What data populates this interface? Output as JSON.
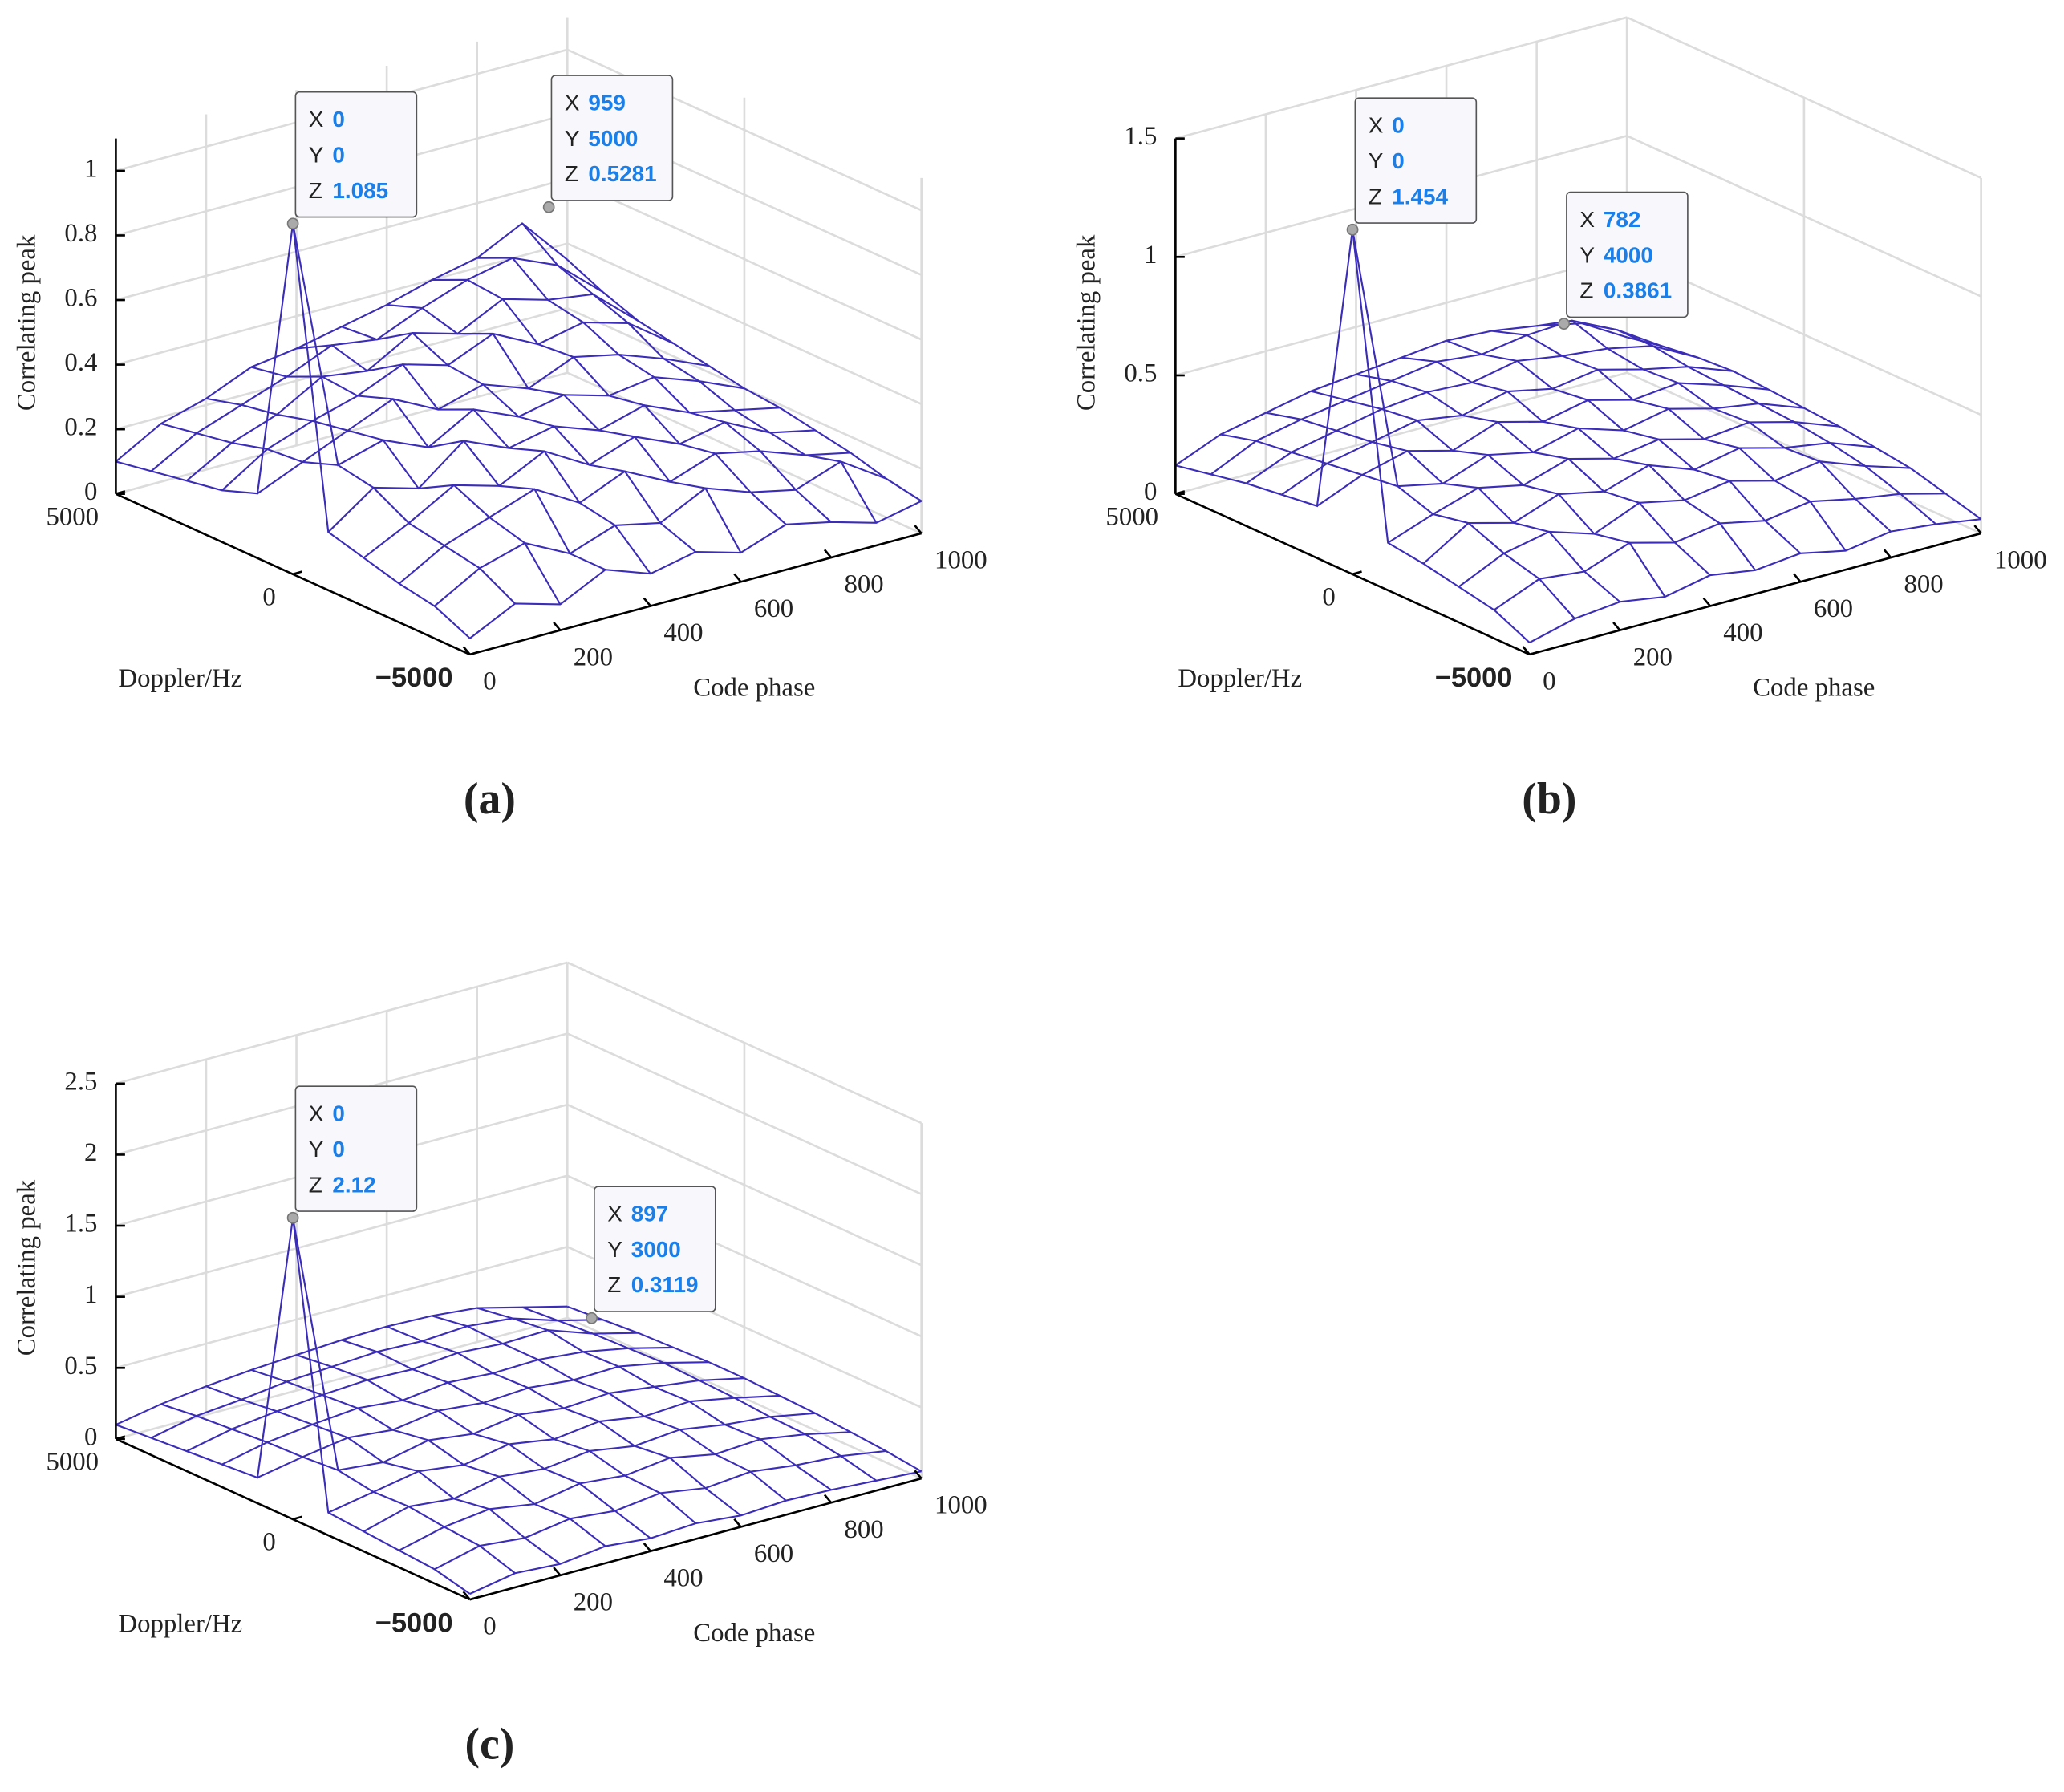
{
  "chart_data": [
    {
      "type": "mesh",
      "panel_label": "(a)",
      "xlabel": "Code phase",
      "ylabel": "Doppler/Hz",
      "zlabel": "Correlating peak",
      "color": "#3b2db8",
      "xlim": [
        0,
        1000
      ],
      "xticks": [
        0,
        200,
        400,
        600,
        800,
        1000
      ],
      "ylim": [
        -5000,
        5000
      ],
      "yticks": [
        {
          "value": -5000,
          "label": "−5000"
        },
        0,
        5000
      ],
      "zlim": [
        0,
        1.1
      ],
      "zticks": [
        0,
        0.2,
        0.4,
        0.6,
        0.8,
        1
      ],
      "grid": true,
      "x": [
        0,
        100,
        200,
        300,
        400,
        500,
        600,
        700,
        800,
        900,
        1000
      ],
      "y": [
        -5000,
        -4000,
        -3000,
        -2000,
        -1000,
        0,
        1000,
        2000,
        3000,
        4000,
        5000
      ],
      "z": [
        [
          0.05,
          0.12,
          0.08,
          0.15,
          0.1,
          0.13,
          0.09,
          0.14,
          0.11,
          0.07,
          0.1
        ],
        [
          0.1,
          0.18,
          0.22,
          0.15,
          0.2,
          0.17,
          0.24,
          0.19,
          0.16,
          0.21,
          0.12
        ],
        [
          0.12,
          0.2,
          0.25,
          0.3,
          0.22,
          0.28,
          0.21,
          0.26,
          0.23,
          0.18,
          0.15
        ],
        [
          0.15,
          0.22,
          0.3,
          0.26,
          0.33,
          0.25,
          0.3,
          0.24,
          0.27,
          0.2,
          0.17
        ],
        [
          0.18,
          0.28,
          0.24,
          0.35,
          0.29,
          0.32,
          0.27,
          0.31,
          0.25,
          0.22,
          0.19
        ],
        [
          1.085,
          0.3,
          0.34,
          0.28,
          0.36,
          0.3,
          0.33,
          0.29,
          0.31,
          0.26,
          0.2
        ],
        [
          0.2,
          0.26,
          0.32,
          0.38,
          0.31,
          0.35,
          0.3,
          0.36,
          0.33,
          0.28,
          0.22
        ],
        [
          0.16,
          0.25,
          0.3,
          0.34,
          0.4,
          0.36,
          0.42,
          0.35,
          0.38,
          0.34,
          0.24
        ],
        [
          0.14,
          0.22,
          0.27,
          0.35,
          0.33,
          0.41,
          0.37,
          0.44,
          0.4,
          0.38,
          0.26
        ],
        [
          0.12,
          0.2,
          0.25,
          0.3,
          0.36,
          0.34,
          0.4,
          0.45,
          0.48,
          0.42,
          0.3
        ],
        [
          0.1,
          0.18,
          0.22,
          0.28,
          0.3,
          0.33,
          0.36,
          0.4,
          0.43,
          0.5,
          0.35
        ]
      ],
      "datatip_fields": [
        "X",
        "Y",
        "Z"
      ],
      "datatips": [
        {
          "x": 0,
          "y": 0,
          "z": 1.085
        },
        {
          "x": 959,
          "y": 5000,
          "z": 0.5281
        }
      ]
    },
    {
      "type": "mesh",
      "panel_label": "(b)",
      "xlabel": "Code phase",
      "ylabel": "Doppler/Hz",
      "zlabel": "Correlating peak",
      "color": "#3b2db8",
      "xlim": [
        0,
        1000
      ],
      "xticks": [
        0,
        200,
        400,
        600,
        800,
        1000
      ],
      "ylim": [
        -5000,
        5000
      ],
      "yticks": [
        {
          "value": -5000,
          "label": "−5000"
        },
        0,
        5000
      ],
      "zlim": [
        0,
        1.5
      ],
      "zticks": [
        0,
        0.5,
        1,
        1.5
      ],
      "grid": true,
      "x": [
        0,
        100,
        200,
        300,
        400,
        500,
        600,
        700,
        800,
        900,
        1000
      ],
      "y": [
        -5000,
        -4000,
        -3000,
        -2000,
        -1000,
        0,
        1000,
        2000,
        3000,
        4000,
        5000
      ],
      "z": [
        [
          0.05,
          0.1,
          0.12,
          0.09,
          0.13,
          0.1,
          0.12,
          0.08,
          0.11,
          0.09,
          0.06
        ],
        [
          0.12,
          0.2,
          0.18,
          0.25,
          0.2,
          0.23,
          0.19,
          0.22,
          0.18,
          0.15,
          0.1
        ],
        [
          0.15,
          0.24,
          0.28,
          0.22,
          0.3,
          0.26,
          0.29,
          0.24,
          0.27,
          0.2,
          0.14
        ],
        [
          0.18,
          0.3,
          0.25,
          0.32,
          0.28,
          0.34,
          0.27,
          0.31,
          0.26,
          0.23,
          0.16
        ],
        [
          0.2,
          0.27,
          0.33,
          0.29,
          0.35,
          0.3,
          0.33,
          0.28,
          0.3,
          0.25,
          0.18
        ],
        [
          1.454,
          0.32,
          0.28,
          0.35,
          0.31,
          0.36,
          0.3,
          0.34,
          0.29,
          0.26,
          0.19
        ],
        [
          0.22,
          0.3,
          0.35,
          0.3,
          0.37,
          0.32,
          0.36,
          0.31,
          0.33,
          0.27,
          0.2
        ],
        [
          0.2,
          0.28,
          0.32,
          0.36,
          0.33,
          0.38,
          0.34,
          0.37,
          0.32,
          0.28,
          0.21
        ],
        [
          0.18,
          0.26,
          0.3,
          0.34,
          0.36,
          0.35,
          0.39,
          0.36,
          0.34,
          0.3,
          0.2
        ],
        [
          0.15,
          0.24,
          0.28,
          0.31,
          0.34,
          0.37,
          0.35,
          0.38,
          0.39,
          0.3,
          0.18
        ],
        [
          0.12,
          0.2,
          0.24,
          0.28,
          0.3,
          0.32,
          0.34,
          0.33,
          0.3,
          0.26,
          0.15
        ]
      ],
      "datatip_fields": [
        "X",
        "Y",
        "Z"
      ],
      "datatips": [
        {
          "x": 0,
          "y": 0,
          "z": 1.454
        },
        {
          "x": 782,
          "y": 4000,
          "z": 0.3861
        }
      ]
    },
    {
      "type": "mesh",
      "panel_label": "(c)",
      "xlabel": "Code phase",
      "ylabel": "Doppler/Hz",
      "zlabel": "Correlating peak",
      "color": "#3b2db8",
      "xlim": [
        0,
        1000
      ],
      "xticks": [
        0,
        200,
        400,
        600,
        800,
        1000
      ],
      "ylim": [
        -5000,
        5000
      ],
      "yticks": [
        {
          "value": -5000,
          "label": "−5000"
        },
        0,
        5000
      ],
      "zlim": [
        0,
        2.5
      ],
      "zticks": [
        0,
        0.5,
        1,
        1.5,
        2,
        2.5
      ],
      "grid": true,
      "x": [
        0,
        100,
        200,
        300,
        400,
        500,
        600,
        700,
        800,
        900,
        1000
      ],
      "y": [
        -5000,
        -4000,
        -3000,
        -2000,
        -1000,
        0,
        1000,
        2000,
        3000,
        4000,
        5000
      ],
      "z": [
        [
          0.04,
          0.1,
          0.08,
          0.12,
          0.09,
          0.11,
          0.08,
          0.1,
          0.09,
          0.07,
          0.05
        ],
        [
          0.1,
          0.18,
          0.15,
          0.2,
          0.17,
          0.21,
          0.16,
          0.19,
          0.15,
          0.13,
          0.08
        ],
        [
          0.12,
          0.2,
          0.24,
          0.19,
          0.25,
          0.22,
          0.26,
          0.2,
          0.22,
          0.17,
          0.1
        ],
        [
          0.14,
          0.23,
          0.2,
          0.27,
          0.24,
          0.28,
          0.23,
          0.26,
          0.21,
          0.18,
          0.12
        ],
        [
          0.16,
          0.22,
          0.28,
          0.24,
          0.3,
          0.25,
          0.29,
          0.24,
          0.26,
          0.2,
          0.13
        ],
        [
          2.12,
          0.26,
          0.23,
          0.3,
          0.26,
          0.31,
          0.27,
          0.29,
          0.25,
          0.21,
          0.14
        ],
        [
          0.18,
          0.24,
          0.29,
          0.26,
          0.31,
          0.28,
          0.3,
          0.27,
          0.28,
          0.22,
          0.14
        ],
        [
          0.16,
          0.23,
          0.27,
          0.3,
          0.27,
          0.31,
          0.29,
          0.3,
          0.27,
          0.21,
          0.13
        ],
        [
          0.14,
          0.21,
          0.25,
          0.28,
          0.3,
          0.29,
          0.32,
          0.3,
          0.31,
          0.2,
          0.12
        ],
        [
          0.12,
          0.19,
          0.22,
          0.26,
          0.28,
          0.3,
          0.29,
          0.31,
          0.28,
          0.18,
          0.1
        ],
        [
          0.1,
          0.16,
          0.2,
          0.23,
          0.25,
          0.27,
          0.28,
          0.27,
          0.24,
          0.16,
          0.08
        ]
      ],
      "datatip_fields": [
        "X",
        "Y",
        "Z"
      ],
      "datatips": [
        {
          "x": 0,
          "y": 0,
          "z": 2.12
        },
        {
          "x": 897,
          "y": 3000,
          "z": 0.3119
        }
      ]
    }
  ]
}
